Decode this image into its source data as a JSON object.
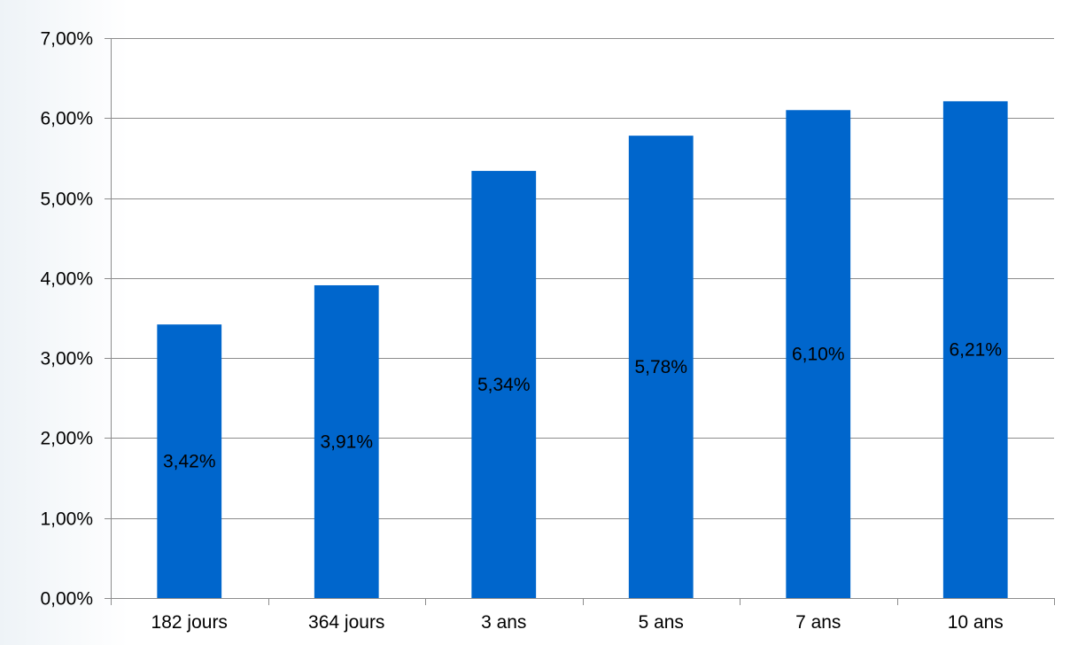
{
  "colors": {
    "bar": "#0066cc",
    "grid": "#8c8c8c",
    "axis": "#8c8c8c",
    "background": "#ffffff"
  },
  "chart_data": {
    "type": "bar",
    "categories": [
      "182 jours",
      "364 jours",
      "3 ans",
      "5 ans",
      "7 ans",
      "10 ans"
    ],
    "values": [
      3.42,
      3.91,
      5.34,
      5.78,
      6.1,
      6.21
    ],
    "data_labels": [
      "3,42%",
      "3,91%",
      "5,34%",
      "5,78%",
      "6,10%",
      "6,21%"
    ],
    "y_ticks": [
      0,
      1,
      2,
      3,
      4,
      5,
      6,
      7
    ],
    "y_tick_labels": [
      "0,00%",
      "1,00%",
      "2,00%",
      "3,00%",
      "4,00%",
      "5,00%",
      "6,00%",
      "7,00%"
    ],
    "ylim": [
      0,
      7
    ],
    "grid": true,
    "legend": "none"
  }
}
